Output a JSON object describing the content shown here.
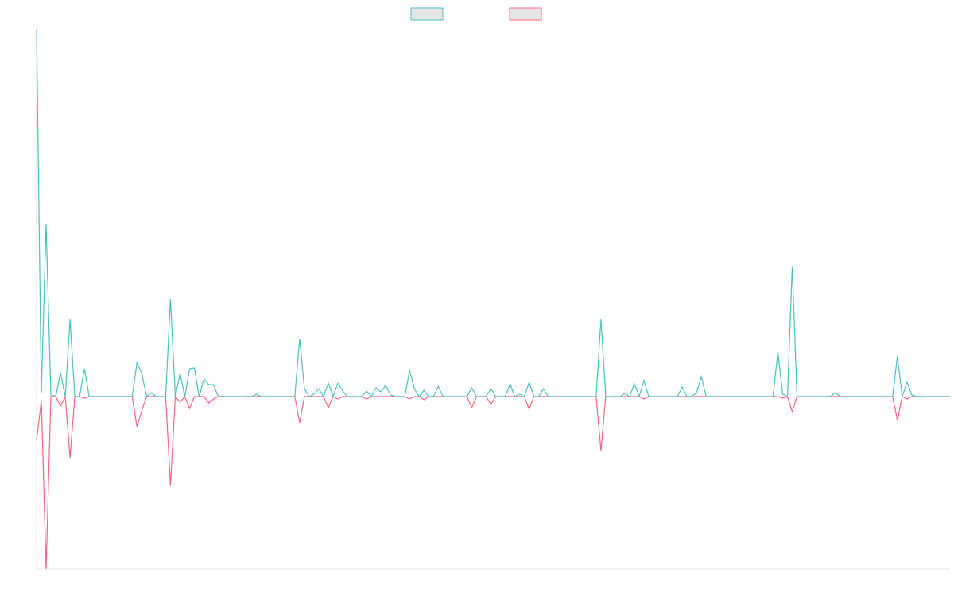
{
  "chart_data": {
    "type": "line",
    "legend": "top",
    "ylim": [
      -217,
      462
    ],
    "xlim": [
      0,
      191
    ],
    "series": [
      {
        "color": "#ff6384",
        "values": [
          -55,
          -5,
          -217,
          0,
          0,
          -12,
          0,
          -77,
          0,
          0,
          -2,
          0,
          0,
          0,
          0,
          0,
          0,
          0,
          0,
          0,
          0,
          -38,
          -18,
          0,
          0,
          0,
          0,
          0,
          -112,
          0,
          -7,
          0,
          -15,
          0,
          0,
          0,
          -8,
          -3,
          0,
          0,
          0,
          0,
          0,
          0,
          0,
          0,
          0,
          0,
          0,
          0,
          0,
          0,
          0,
          0,
          0,
          -33,
          0,
          0,
          0,
          0,
          0,
          -14,
          0,
          -3,
          0,
          0,
          0,
          0,
          0,
          -3,
          0,
          0,
          0,
          0,
          0,
          0,
          0,
          0,
          -3,
          0,
          0,
          -4,
          0,
          0,
          0,
          0,
          0,
          0,
          0,
          0,
          0,
          -14,
          0,
          0,
          0,
          -10,
          0,
          0,
          0,
          0,
          0,
          0,
          0,
          -16,
          0,
          0,
          0,
          0,
          0,
          0,
          0,
          0,
          0,
          0,
          0,
          0,
          0,
          0,
          -68,
          0,
          0,
          0,
          0,
          0,
          0,
          0,
          0,
          -3,
          0,
          0,
          0,
          0,
          0,
          0,
          0,
          0,
          0,
          0,
          0,
          0,
          0,
          0,
          0,
          0,
          0,
          0,
          0,
          0,
          0,
          0,
          0,
          0,
          0,
          0,
          0,
          0,
          -2,
          0,
          -19,
          0,
          0,
          0,
          0,
          0,
          0,
          0,
          0,
          0,
          0,
          0,
          0,
          0,
          0,
          0,
          0,
          0,
          0,
          0,
          0,
          0,
          -30,
          0,
          -3,
          0,
          0,
          0,
          0,
          0,
          0,
          0,
          0,
          0
        ]
      },
      {
        "color": "#4bc0c0",
        "values": [
          462,
          5,
          217,
          2,
          0,
          30,
          0,
          97,
          0,
          0,
          35,
          0,
          0,
          0,
          0,
          0,
          0,
          0,
          0,
          0,
          0,
          43,
          29,
          0,
          5,
          0,
          0,
          0,
          123,
          0,
          29,
          0,
          35,
          36,
          0,
          22,
          15,
          15,
          0,
          0,
          0,
          0,
          0,
          0,
          0,
          0,
          3,
          0,
          0,
          0,
          0,
          0,
          0,
          0,
          0,
          73,
          10,
          0,
          3,
          10,
          0,
          17,
          0,
          17,
          7,
          0,
          0,
          0,
          0,
          7,
          0,
          11,
          6,
          14,
          2,
          0,
          0,
          0,
          33,
          10,
          0,
          8,
          0,
          0,
          13,
          0,
          0,
          0,
          0,
          0,
          0,
          11,
          0,
          0,
          0,
          10,
          0,
          0,
          0,
          16,
          0,
          3,
          0,
          18,
          0,
          0,
          10,
          0,
          0,
          0,
          0,
          0,
          0,
          0,
          0,
          0,
          0,
          0,
          97,
          0,
          0,
          0,
          0,
          4,
          0,
          16,
          0,
          20,
          0,
          0,
          0,
          0,
          0,
          0,
          0,
          12,
          0,
          0,
          5,
          25,
          0,
          0,
          0,
          0,
          0,
          0,
          0,
          0,
          0,
          0,
          0,
          0,
          0,
          0,
          0,
          56,
          3,
          0,
          163,
          0,
          0,
          0,
          0,
          0,
          0,
          0,
          0,
          5,
          0,
          0,
          0,
          0,
          0,
          0,
          0,
          0,
          0,
          0,
          0,
          0,
          51,
          0,
          18,
          2,
          0,
          0,
          0,
          0,
          0,
          0,
          0,
          0
        ]
      }
    ]
  }
}
